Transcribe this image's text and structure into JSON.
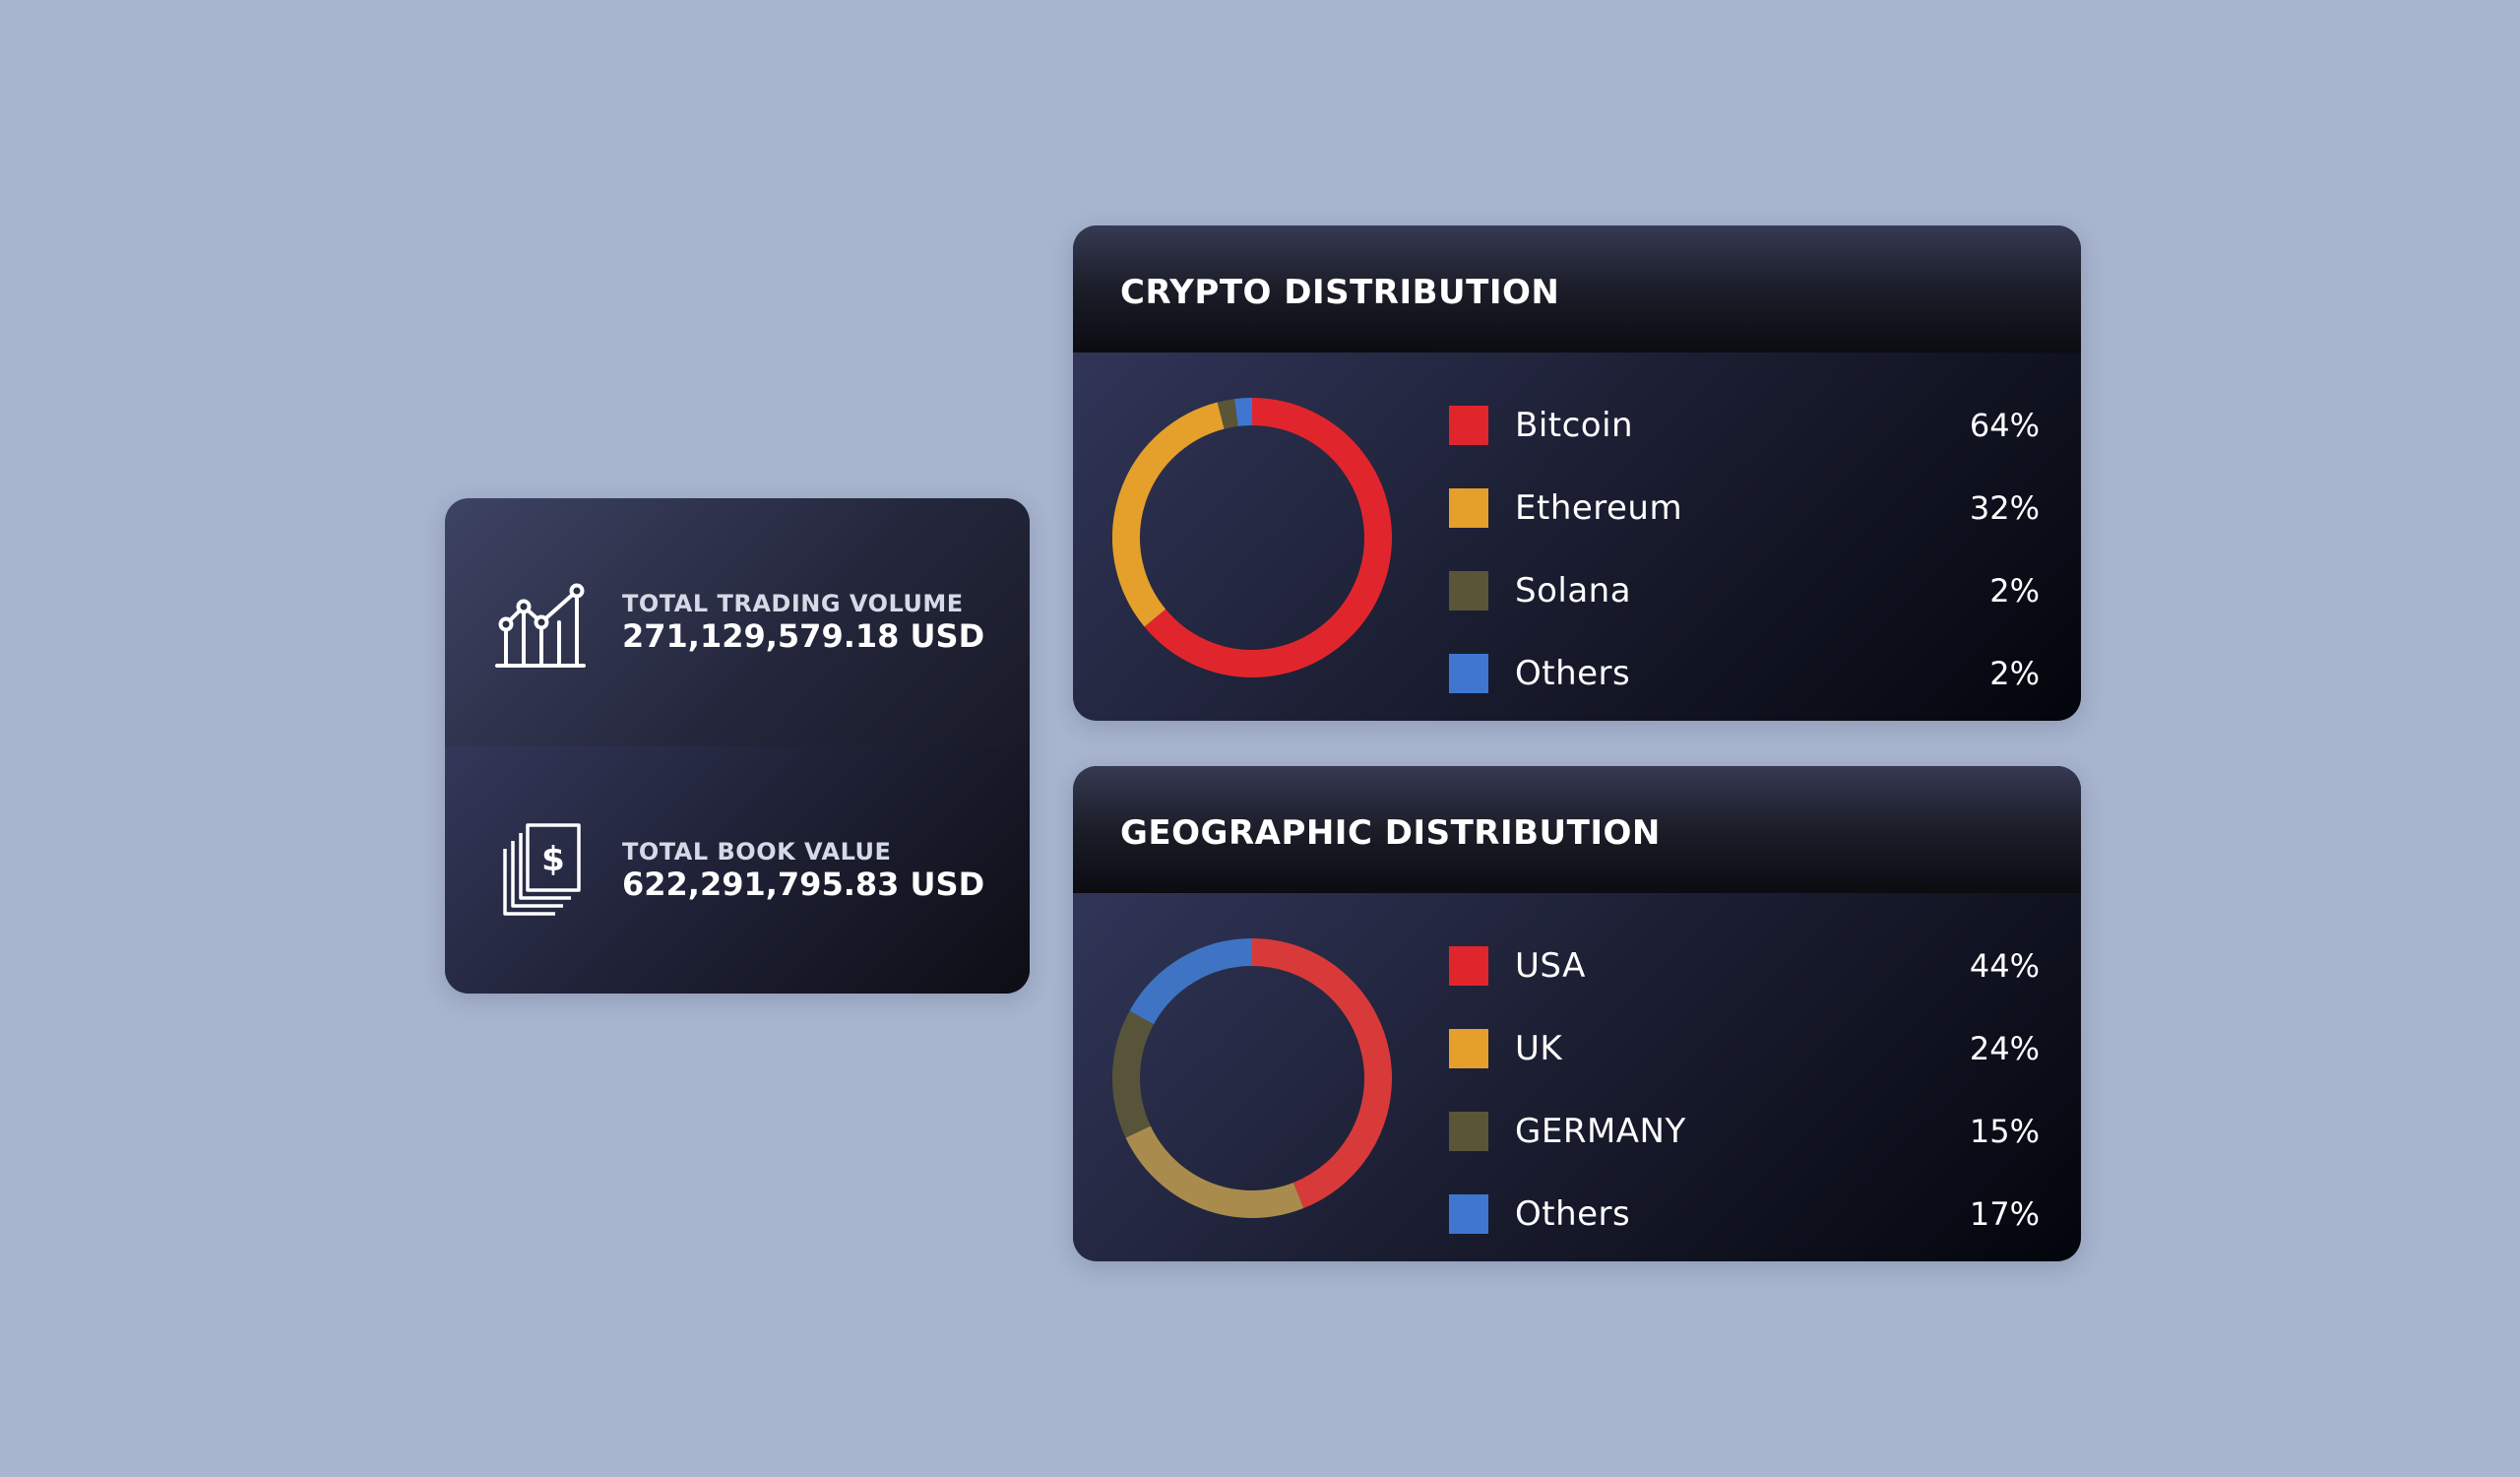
{
  "stats": {
    "trading_volume": {
      "label": "TOTAL TRADING VOLUME",
      "value": "271,129,579.18 USD",
      "icon": "chart-growth-icon"
    },
    "book_value": {
      "label": "TOTAL BOOK VALUE",
      "value": "622,291,795.83 USD",
      "icon": "dollar-documents-icon"
    }
  },
  "crypto": {
    "title": "CRYPTO DISTRIBUTION",
    "items": [
      {
        "name": "Bitcoin",
        "value_text": "64%",
        "value": 64,
        "color": "#e0262c"
      },
      {
        "name": "Ethereum",
        "value_text": "32%",
        "value": 32,
        "color": "#e4a02a"
      },
      {
        "name": "Solana",
        "value_text": "2%",
        "value": 2,
        "color": "#5b5538"
      },
      {
        "name": "Others",
        "value_text": "2%",
        "value": 2,
        "color": "#3f77d0"
      }
    ]
  },
  "geo": {
    "title": "GEOGRAPHIC DISTRIBUTION",
    "items": [
      {
        "name": "USA",
        "value_text": "44%",
        "value": 44,
        "color": "#e0262c"
      },
      {
        "name": "UK",
        "value_text": "24%",
        "value": 24,
        "color": "#e4a02a"
      },
      {
        "name": "GERMANY",
        "value_text": "15%",
        "value": 15,
        "color": "#5b5538"
      },
      {
        "name": "Others",
        "value_text": "17%",
        "value": 17,
        "color": "#3f77d0"
      }
    ],
    "ring_colors": [
      "#d83a3a",
      "#a98c4d",
      "#58543a",
      "#3f74c4"
    ]
  },
  "chart_data": [
    {
      "type": "pie",
      "title": "CRYPTO DISTRIBUTION",
      "categories": [
        "Bitcoin",
        "Ethereum",
        "Solana",
        "Others"
      ],
      "values": [
        64,
        32,
        2,
        2
      ]
    },
    {
      "type": "pie",
      "title": "GEOGRAPHIC DISTRIBUTION",
      "categories": [
        "USA",
        "UK",
        "GERMANY",
        "Others"
      ],
      "values": [
        44,
        24,
        15,
        17
      ]
    }
  ]
}
